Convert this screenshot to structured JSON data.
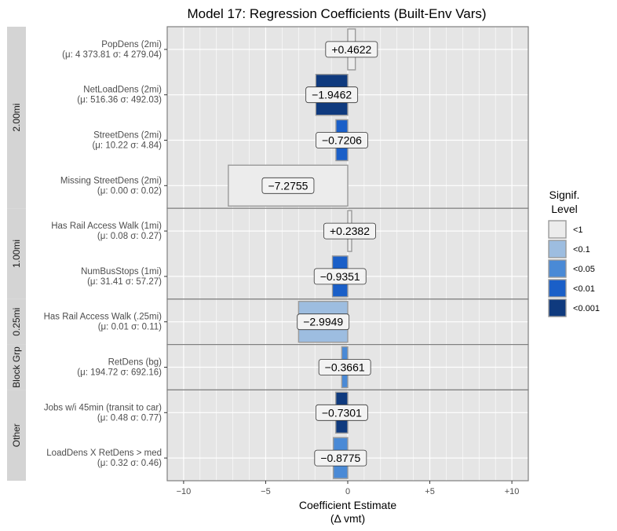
{
  "chart_data": {
    "type": "bar",
    "orientation": "horizontal",
    "title": "Model 17: Regression Coefficients (Built-Env Vars)",
    "xlabel_line1": "Coefficient Estimate",
    "xlabel_line2": "(Δ vmt)",
    "xlim": [
      -11,
      11
    ],
    "x_ticks": [
      {
        "value": -10,
        "label": "−10"
      },
      {
        "value": -5,
        "label": "−5"
      },
      {
        "value": 0,
        "label": "0"
      },
      {
        "value": 5,
        "label": "+5"
      },
      {
        "value": 10,
        "label": "+10"
      }
    ],
    "groups": [
      {
        "name": "2.00mi",
        "rows": [
          {
            "label": "PopDens (2mi)",
            "stats": "(μ: 4 373.81  σ: 4 279.04)",
            "value": 0.4622,
            "value_label": "+0.4622",
            "signif": "<1"
          },
          {
            "label": "NetLoadDens (2mi)",
            "stats": "(μ: 516.36  σ: 492.03)",
            "value": -1.9462,
            "value_label": "−1.9462",
            "signif": "<0.001"
          },
          {
            "label": "StreetDens (2mi)",
            "stats": "(μ: 10.22  σ: 4.84)",
            "value": -0.7206,
            "value_label": "−0.7206",
            "signif": "<0.01"
          },
          {
            "label": "Missing StreetDens (2mi)",
            "stats": "(μ: 0.00  σ: 0.02)",
            "value": -7.2755,
            "value_label": "−7.2755",
            "signif": "<1"
          }
        ]
      },
      {
        "name": "1.00mi",
        "rows": [
          {
            "label": "Has Rail Access Walk (1mi)",
            "stats": "(μ: 0.08  σ: 0.27)",
            "value": 0.2382,
            "value_label": "+0.2382",
            "signif": "<1"
          },
          {
            "label": "NumBusStops (1mi)",
            "stats": "(μ: 31.41  σ: 57.27)",
            "value": -0.9351,
            "value_label": "−0.9351",
            "signif": "<0.01"
          }
        ]
      },
      {
        "name": "0.25mi",
        "rows": [
          {
            "label": "Has Rail Access Walk (.25mi)",
            "stats": "(μ: 0.01  σ: 0.11)",
            "value": -2.9949,
            "value_label": "−2.9949",
            "signif": "<0.1"
          }
        ]
      },
      {
        "name": "Block Grp",
        "rows": [
          {
            "label": "RetDens (bg)",
            "stats": "(μ: 194.72  σ: 692.16)",
            "value": -0.3661,
            "value_label": "−0.3661",
            "signif": "<0.05"
          }
        ]
      },
      {
        "name": "Other",
        "rows": [
          {
            "label": "Jobs w/i 45min (transit to car)",
            "stats": "(μ: 0.48  σ: 0.77)",
            "value": -0.7301,
            "value_label": "−0.7301",
            "signif": "<0.001"
          },
          {
            "label": "LoadDens X RetDens > med",
            "stats": "(μ: 0.32  σ: 0.46)",
            "value": -0.8775,
            "value_label": "−0.8775",
            "signif": "<0.05"
          }
        ]
      }
    ],
    "legend": {
      "title_line1": "Signif.",
      "title_line2": "Level",
      "placement": "right",
      "items": [
        {
          "label": "<1",
          "color": "#ececec"
        },
        {
          "label": "<0.1",
          "color": "#9dbde0"
        },
        {
          "label": "<0.05",
          "color": "#4a8ad6"
        },
        {
          "label": "<0.01",
          "color": "#1a5fc8"
        },
        {
          "label": "<0.001",
          "color": "#0f3a7e"
        }
      ]
    },
    "grid": true
  }
}
